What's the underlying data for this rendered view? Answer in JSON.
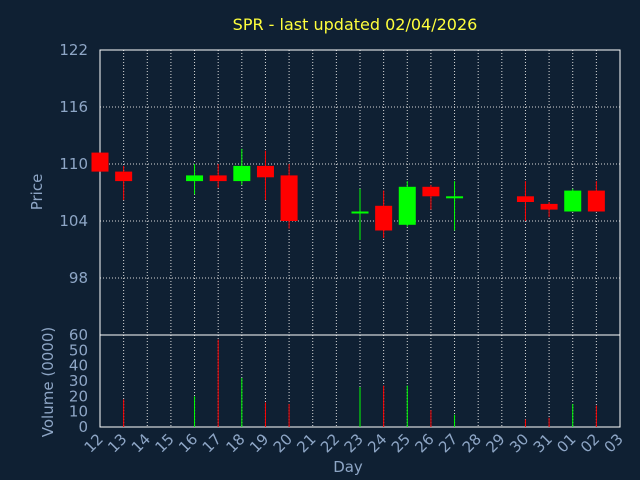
{
  "chart_data": {
    "type": "candlestick",
    "title": "SPR - last updated 02/04/2026",
    "xlabel": "Day",
    "price_ylabel": "Price",
    "volume_ylabel": "Volume (0000)",
    "x_ticks": [
      "12",
      "13",
      "14",
      "15",
      "16",
      "17",
      "18",
      "19",
      "20",
      "21",
      "22",
      "23",
      "24",
      "25",
      "26",
      "27",
      "28",
      "29",
      "30",
      "31",
      "01",
      "02",
      "03"
    ],
    "price_ylim": [
      92,
      122
    ],
    "price_ticks": [
      98,
      104,
      110,
      116,
      122
    ],
    "volume_ylim": [
      0,
      60
    ],
    "volume_ticks": [
      0,
      10,
      20,
      30,
      40,
      50,
      60
    ],
    "grid": true,
    "colors": {
      "up": "#00ff00",
      "down": "#ff0000",
      "title": "#ffff3c",
      "axis": "#8ea6c6",
      "background": "#0f2033"
    },
    "candles": [
      {
        "day": "12",
        "open": 111.2,
        "high": 111.2,
        "low": 109.2,
        "close": 109.2,
        "volume": 0
      },
      {
        "day": "13",
        "open": 109.2,
        "high": 109.8,
        "low": 106.2,
        "close": 108.2,
        "volume": 18
      },
      {
        "day": "16",
        "open": 108.2,
        "high": 110.0,
        "low": 106.8,
        "close": 108.8,
        "volume": 20
      },
      {
        "day": "17",
        "open": 108.8,
        "high": 110.0,
        "low": 107.5,
        "close": 108.2,
        "volume": 57
      },
      {
        "day": "18",
        "open": 108.2,
        "high": 111.6,
        "low": 107.8,
        "close": 109.8,
        "volume": 32
      },
      {
        "day": "19",
        "open": 109.8,
        "high": 111.4,
        "low": 106.2,
        "close": 108.6,
        "volume": 16
      },
      {
        "day": "20",
        "open": 108.8,
        "high": 110.0,
        "low": 103.2,
        "close": 104.0,
        "volume": 15
      },
      {
        "day": "23",
        "open": 104.8,
        "high": 107.4,
        "low": 102.0,
        "close": 105.0,
        "volume": 26
      },
      {
        "day": "24",
        "open": 105.6,
        "high": 107.2,
        "low": 102.2,
        "close": 103.0,
        "volume": 27
      },
      {
        "day": "25",
        "open": 103.6,
        "high": 108.2,
        "low": 103.4,
        "close": 107.6,
        "volume": 27
      },
      {
        "day": "26",
        "open": 107.6,
        "high": 107.8,
        "low": 105.2,
        "close": 106.6,
        "volume": 11
      },
      {
        "day": "27",
        "open": 106.4,
        "high": 108.2,
        "low": 103.0,
        "close": 106.6,
        "volume": 8
      },
      {
        "day": "30",
        "open": 106.6,
        "high": 108.2,
        "low": 104.0,
        "close": 106.0,
        "volume": 5
      },
      {
        "day": "31",
        "open": 105.8,
        "high": 106.0,
        "low": 104.4,
        "close": 105.2,
        "volume": 6
      },
      {
        "day": "01",
        "open": 105.0,
        "high": 107.4,
        "low": 105.0,
        "close": 107.2,
        "volume": 15
      },
      {
        "day": "02",
        "open": 107.2,
        "high": 108.2,
        "low": 105.0,
        "close": 105.0,
        "volume": 14
      }
    ]
  }
}
